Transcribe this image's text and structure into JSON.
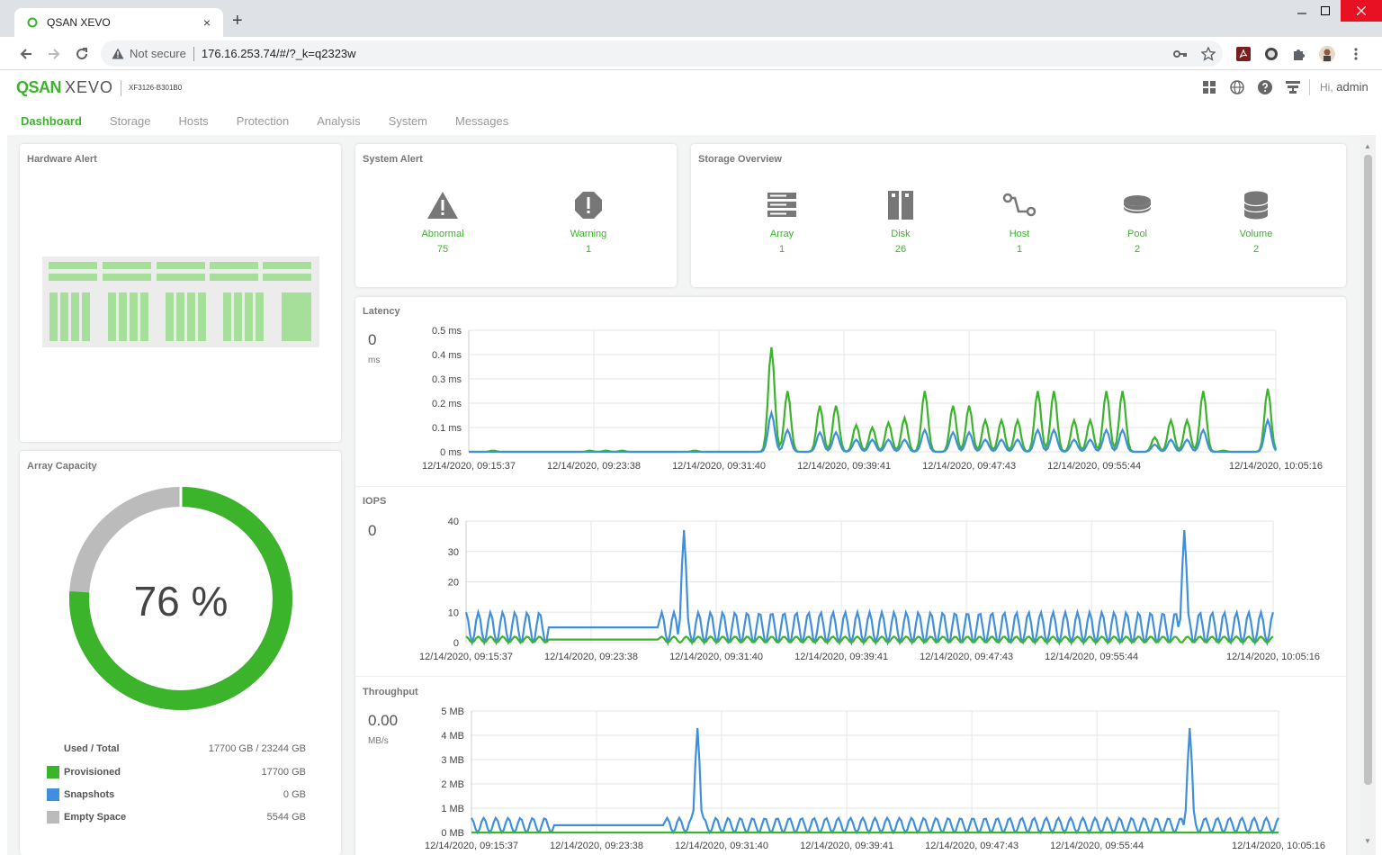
{
  "browser": {
    "tab_title": "QSAN XEVO",
    "tab_close": "×",
    "new_tab": "+",
    "not_secure": "Not secure",
    "url": "176.16.253.74/#/?_k=q2323w"
  },
  "app": {
    "logo_brand": "QSAN",
    "logo_product": "XEVO",
    "model": "XF3126-B301B0",
    "greeting_prefix": "Hi,",
    "user": "admin",
    "nav": [
      "Dashboard",
      "Storage",
      "Hosts",
      "Protection",
      "Analysis",
      "System",
      "Messages"
    ],
    "active_nav": "Dashboard"
  },
  "colors": {
    "green": "#3bb32b",
    "blue": "#3f8fde",
    "gray": "#bbbbbb",
    "light_green": "#a6df99"
  },
  "hardware_alert": {
    "title": "Hardware Alert"
  },
  "system_alert": {
    "title": "System Alert",
    "items": [
      {
        "label": "Abnormal",
        "value": "75",
        "icon": "warning-triangle-icon"
      },
      {
        "label": "Warning",
        "value": "1",
        "icon": "exclamation-octagon-icon"
      }
    ]
  },
  "storage_overview": {
    "title": "Storage Overview",
    "items": [
      {
        "label": "Array",
        "value": "1",
        "icon": "array-icon"
      },
      {
        "label": "Disk",
        "value": "26",
        "icon": "disk-icon"
      },
      {
        "label": "Host",
        "value": "1",
        "icon": "host-icon"
      },
      {
        "label": "Pool",
        "value": "2",
        "icon": "pool-icon"
      },
      {
        "label": "Volume",
        "value": "2",
        "icon": "volume-icon"
      }
    ]
  },
  "array_capacity": {
    "title": "Array Capacity",
    "percent_label": "76 %",
    "used_fraction": 0.76,
    "legend": [
      {
        "name": "Used / Total",
        "value": "17700 GB / 23244 GB",
        "color": ""
      },
      {
        "name": "Provisioned",
        "value": "17700 GB",
        "color": "#3bb32b"
      },
      {
        "name": "Snapshots",
        "value": "0 GB",
        "color": "#3f8fde"
      },
      {
        "name": "Empty Space",
        "value": "5544 GB",
        "color": "#bbbbbb"
      }
    ]
  },
  "latency": {
    "title": "Latency",
    "current": "0",
    "unit": "ms"
  },
  "iops": {
    "title": "IOPS",
    "current": "0"
  },
  "throughput": {
    "title": "Throughput",
    "current": "0.00",
    "unit": "MB/s"
  },
  "chart_data": [
    {
      "type": "line",
      "title": "Latency",
      "y_ticks": [
        "0 ms",
        "0.1 ms",
        "0.2 ms",
        "0.3 ms",
        "0.4 ms",
        "0.5 ms"
      ],
      "ylim": [
        0,
        0.5
      ],
      "x_ticks": [
        "12/14/2020, 09:15:37",
        "12/14/2020, 09:23:38",
        "12/14/2020, 09:31:40",
        "12/14/2020, 09:39:41",
        "12/14/2020, 09:47:43",
        "12/14/2020, 09:55:44",
        "12/14/2020, 10:05:16"
      ],
      "series": [
        {
          "color": "#3bb32b",
          "peaks": [
            [
              0.03,
              0.005
            ],
            [
              0.15,
              0.005
            ],
            [
              0.17,
              0.005
            ],
            [
              0.19,
              0.005
            ],
            [
              0.28,
              0.005
            ],
            [
              0.375,
              0.43
            ],
            [
              0.395,
              0.25
            ],
            [
              0.435,
              0.19
            ],
            [
              0.455,
              0.19
            ],
            [
              0.48,
              0.11
            ],
            [
              0.5,
              0.1
            ],
            [
              0.52,
              0.12
            ],
            [
              0.54,
              0.14
            ],
            [
              0.565,
              0.25
            ],
            [
              0.6,
              0.19
            ],
            [
              0.62,
              0.19
            ],
            [
              0.64,
              0.13
            ],
            [
              0.66,
              0.13
            ],
            [
              0.68,
              0.13
            ],
            [
              0.705,
              0.25
            ],
            [
              0.725,
              0.25
            ],
            [
              0.75,
              0.13
            ],
            [
              0.77,
              0.13
            ],
            [
              0.79,
              0.25
            ],
            [
              0.81,
              0.25
            ],
            [
              0.85,
              0.06
            ],
            [
              0.87,
              0.13
            ],
            [
              0.89,
              0.13
            ],
            [
              0.91,
              0.25
            ],
            [
              0.935,
              0.005
            ],
            [
              0.99,
              0.26
            ]
          ]
        },
        {
          "color": "#3f8fde",
          "peaks": [
            [
              0.375,
              0.16
            ],
            [
              0.395,
              0.09
            ],
            [
              0.435,
              0.08
            ],
            [
              0.455,
              0.08
            ],
            [
              0.48,
              0.05
            ],
            [
              0.5,
              0.05
            ],
            [
              0.52,
              0.05
            ],
            [
              0.54,
              0.05
            ],
            [
              0.565,
              0.09
            ],
            [
              0.6,
              0.08
            ],
            [
              0.62,
              0.08
            ],
            [
              0.64,
              0.05
            ],
            [
              0.66,
              0.05
            ],
            [
              0.68,
              0.05
            ],
            [
              0.705,
              0.09
            ],
            [
              0.725,
              0.09
            ],
            [
              0.75,
              0.05
            ],
            [
              0.77,
              0.05
            ],
            [
              0.79,
              0.09
            ],
            [
              0.81,
              0.09
            ],
            [
              0.85,
              0.03
            ],
            [
              0.87,
              0.05
            ],
            [
              0.89,
              0.05
            ],
            [
              0.91,
              0.09
            ],
            [
              0.99,
              0.13
            ]
          ]
        }
      ]
    },
    {
      "type": "line",
      "title": "IOPS",
      "y_ticks": [
        "0",
        "10",
        "20",
        "30",
        "40"
      ],
      "ylim": [
        0,
        40
      ],
      "x_ticks": [
        "12/14/2020, 09:15:37",
        "12/14/2020, 09:23:38",
        "12/14/2020, 09:31:40",
        "12/14/2020, 09:39:41",
        "12/14/2020, 09:47:43",
        "12/14/2020, 09:55:44",
        "12/14/2020, 10:05:16"
      ],
      "series": [
        {
          "color": "#3f8fde",
          "baseline": 10,
          "spikes": [
            [
              0.27,
              37
            ],
            [
              0.89,
              37
            ]
          ]
        },
        {
          "color": "#3bb32b",
          "baseline": 2
        }
      ]
    },
    {
      "type": "line",
      "title": "Throughput",
      "y_ticks": [
        "0 MB",
        "1 MB",
        "2 MB",
        "3 MB",
        "4 MB",
        "5 MB"
      ],
      "ylim": [
        0,
        5
      ],
      "x_ticks": [
        "12/14/2020, 09:15:37",
        "12/14/2020, 09:23:38",
        "12/14/2020, 09:31:40",
        "12/14/2020, 09:39:41",
        "12/14/2020, 09:47:43",
        "12/14/2020, 09:55:44",
        "12/14/2020, 10:05:16"
      ],
      "series": [
        {
          "color": "#3f8fde",
          "baseline": 0.6,
          "spikes": [
            [
              0.28,
              4.3
            ],
            [
              0.89,
              4.3
            ]
          ]
        },
        {
          "color": "#3bb32b",
          "baseline": 0
        }
      ]
    }
  ]
}
